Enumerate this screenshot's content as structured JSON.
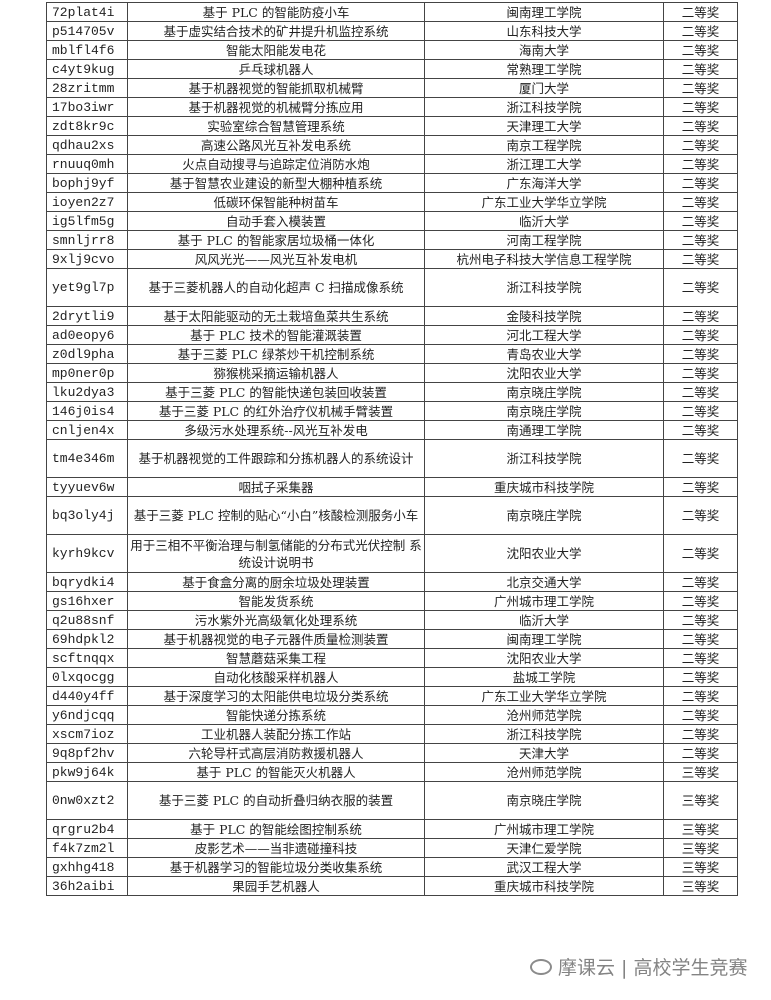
{
  "rows": [
    {
      "code": "72plat4i",
      "title": "基于 PLC 的智能防疫小车",
      "school": "闽南理工学院",
      "award": "二等奖"
    },
    {
      "code": "p514705v",
      "title": "基于虚实结合技术的矿井提升机监控系统",
      "school": "山东科技大学",
      "award": "二等奖"
    },
    {
      "code": "mblfl4f6",
      "title": "智能太阳能发电花",
      "school": "海南大学",
      "award": "二等奖"
    },
    {
      "code": "c4yt9kug",
      "title": "乒乓球机器人",
      "school": "常熟理工学院",
      "award": "二等奖"
    },
    {
      "code": "28zritmm",
      "title": "基于机器视觉的智能抓取机械臂",
      "school": "厦门大学",
      "award": "二等奖"
    },
    {
      "code": "17bo3iwr",
      "title": "基于机器视觉的机械臂分拣应用",
      "school": "浙江科技学院",
      "award": "二等奖"
    },
    {
      "code": "zdt8kr9c",
      "title": "实验室综合智慧管理系统",
      "school": "天津理工大学",
      "award": "二等奖"
    },
    {
      "code": "qdhau2xs",
      "title": "高速公路风光互补发电系统",
      "school": "南京工程学院",
      "award": "二等奖"
    },
    {
      "code": "rnuuq0mh",
      "title": "火点自动搜寻与追踪定位消防水炮",
      "school": "浙江理工大学",
      "award": "二等奖"
    },
    {
      "code": "bophj9yf",
      "title": "基于智慧农业建设的新型大棚种植系统",
      "school": "广东海洋大学",
      "award": "二等奖"
    },
    {
      "code": "ioyen2z7",
      "title": "低碳环保智能种树苗车",
      "school": "广东工业大学华立学院",
      "award": "二等奖"
    },
    {
      "code": "ig5lfm5g",
      "title": "自动手套入模装置",
      "school": "临沂大学",
      "award": "二等奖"
    },
    {
      "code": "smnljrr8",
      "title": "基于 PLC 的智能家居垃圾桶一体化",
      "school": "河南工程学院",
      "award": "二等奖"
    },
    {
      "code": "9xlj9cvo",
      "title": "风风光光——风光互补发电机",
      "school": "杭州电子科技大学信息工程学院",
      "award": "二等奖"
    },
    {
      "code": "yet9gl7p",
      "title": "基于三菱机器人的自动化超声 C 扫描成像系统",
      "school": "浙江科技学院",
      "award": "二等奖",
      "double": true
    },
    {
      "code": "2drytli9",
      "title": "基于太阳能驱动的无土栽培鱼菜共生系统",
      "school": "金陵科技学院",
      "award": "二等奖"
    },
    {
      "code": "ad0eopy6",
      "title": "基于 PLC 技术的智能灌溉装置",
      "school": "河北工程大学",
      "award": "二等奖"
    },
    {
      "code": "z0dl9pha",
      "title": "基于三菱 PLC 绿茶炒干机控制系统",
      "school": "青岛农业大学",
      "award": "二等奖"
    },
    {
      "code": "mp0ner0p",
      "title": "猕猴桃采摘运输机器人",
      "school": "沈阳农业大学",
      "award": "二等奖"
    },
    {
      "code": "lku2dya3",
      "title": "基于三菱 PLC 的智能快递包装回收装置",
      "school": "南京晓庄学院",
      "award": "二等奖"
    },
    {
      "code": "146j0is4",
      "title": "基于三菱 PLC 的红外治疗仪机械手臂装置",
      "school": "南京晓庄学院",
      "award": "二等奖"
    },
    {
      "code": "cnljen4x",
      "title": "多级污水处理系统--风光互补发电",
      "school": "南通理工学院",
      "award": "二等奖"
    },
    {
      "code": "tm4e346m",
      "title": "基于机器视觉的工件跟踪和分拣机器人的系统设计",
      "school": "浙江科技学院",
      "award": "二等奖",
      "double": true
    },
    {
      "code": "tyyuev6w",
      "title": "咽拭子采集器",
      "school": "重庆城市科技学院",
      "award": "二等奖"
    },
    {
      "code": "bq3oly4j",
      "title": "基于三菱 PLC 控制的贴心“小白”核酸检测服务小车",
      "school": "南京晓庄学院",
      "award": "二等奖",
      "double": true
    },
    {
      "code": "kyrh9kcv",
      "title": "用于三相不平衡治理与制氢储能的分布式光伏控制 系统设计说明书",
      "school": "沈阳农业大学",
      "award": "二等奖",
      "double": true
    },
    {
      "code": "bqrydki4",
      "title": "基于食盒分离的厨余垃圾处理装置",
      "school": "北京交通大学",
      "award": "二等奖"
    },
    {
      "code": "gs16hxer",
      "title": "智能发货系统",
      "school": "广州城市理工学院",
      "award": "二等奖"
    },
    {
      "code": "q2u88snf",
      "title": "污水紫外光高级氧化处理系统",
      "school": "临沂大学",
      "award": "二等奖"
    },
    {
      "code": "69hdpkl2",
      "title": "基于机器视觉的电子元器件质量检测装置",
      "school": "闽南理工学院",
      "award": "二等奖"
    },
    {
      "code": "scftnqqx",
      "title": "智慧蘑菇采集工程",
      "school": "沈阳农业大学",
      "award": "二等奖"
    },
    {
      "code": "0lxqocgg",
      "title": "自动化核酸采样机器人",
      "school": "盐城工学院",
      "award": "二等奖"
    },
    {
      "code": "d440y4ff",
      "title": "基于深度学习的太阳能供电垃圾分类系统",
      "school": "广东工业大学华立学院",
      "award": "二等奖"
    },
    {
      "code": "y6ndjcqq",
      "title": "智能快递分拣系统",
      "school": "沧州师范学院",
      "award": "二等奖"
    },
    {
      "code": "xscm7ioz",
      "title": "工业机器人装配分拣工作站",
      "school": "浙江科技学院",
      "award": "二等奖"
    },
    {
      "code": "9q8pf2hv",
      "title": "六轮导杆式高层消防救援机器人",
      "school": "天津大学",
      "award": "二等奖"
    },
    {
      "code": "pkw9j64k",
      "title": "基于 PLC 的智能灭火机器人",
      "school": "沧州师范学院",
      "award": "三等奖"
    },
    {
      "code": "0nw0xzt2",
      "title": "基于三菱 PLC 的自动折叠归纳衣服的装置",
      "school": "南京晓庄学院",
      "award": "三等奖",
      "double": true
    },
    {
      "code": "qrgru2b4",
      "title": "基于 PLC 的智能绘图控制系统",
      "school": "广州城市理工学院",
      "award": "三等奖"
    },
    {
      "code": "f4k7zm2l",
      "title": "皮影艺术——当非遗碰撞科技",
      "school": "天津仁爱学院",
      "award": "三等奖"
    },
    {
      "code": "gxhhg418",
      "title": "基于机器学习的智能垃圾分类收集系统",
      "school": "武汉工程大学",
      "award": "三等奖"
    },
    {
      "code": "36h2aibi",
      "title": "果园手艺机器人",
      "school": "重庆城市科技学院",
      "award": "三等奖"
    }
  ],
  "watermark": {
    "text": "摩课云 | 高校学生竞赛",
    "icon": "wechat-logo-icon"
  }
}
